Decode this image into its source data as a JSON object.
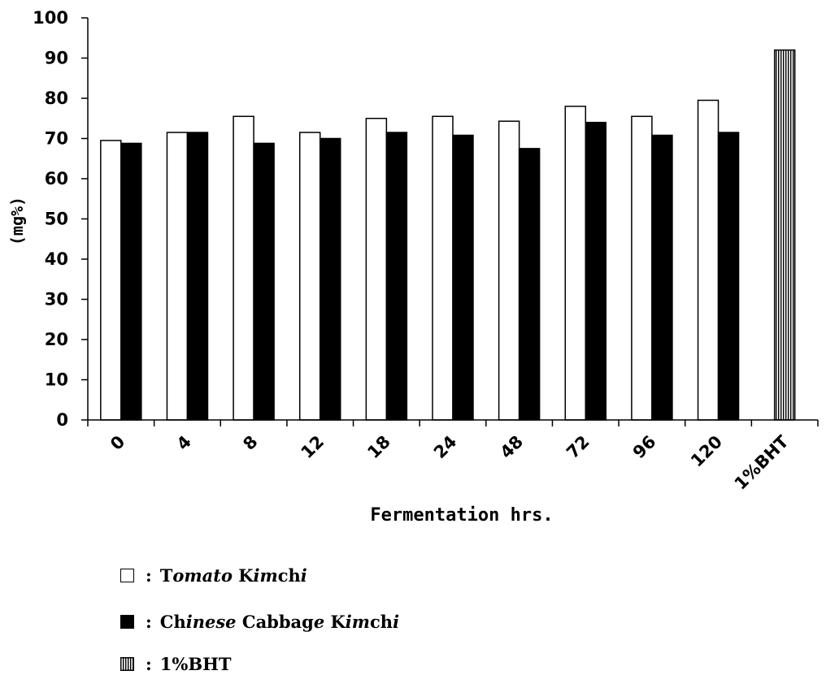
{
  "chart_data": {
    "type": "bar",
    "categories": [
      "0",
      "4",
      "8",
      "12",
      "18",
      "24",
      "48",
      "72",
      "96",
      "120",
      "1%BHT"
    ],
    "series": [
      {
        "name": "Tomato Kimchi",
        "values": [
          69.5,
          71.5,
          75.5,
          71.5,
          75,
          75.5,
          74.3,
          78,
          75.5,
          79.5,
          null
        ],
        "color": "#ffffff"
      },
      {
        "name": "Chinese Cabbage Kimchi",
        "values": [
          68.8,
          71.5,
          68.8,
          70,
          71.5,
          70.8,
          67.5,
          74,
          70.8,
          71.5,
          null
        ],
        "color": "#000000"
      },
      {
        "name": "1%BHT",
        "values": [
          null,
          null,
          null,
          null,
          null,
          null,
          null,
          null,
          null,
          null,
          92
        ],
        "color": "hatched-vertical"
      }
    ],
    "yticks": [
      "0",
      "10",
      "20",
      "30",
      "40",
      "50",
      "60",
      "70",
      "80",
      "90",
      "100"
    ],
    "xlabel": "Fermentation hrs.",
    "ylabel": "(mg%)",
    "ylim": [
      0,
      100
    ],
    "grid": false
  },
  "legend": [
    {
      "sep": ":",
      "parts": [
        [
          "T",
          false
        ],
        [
          "omato",
          true
        ],
        [
          " K",
          false
        ],
        [
          "im",
          true
        ],
        [
          "ch",
          false
        ],
        [
          "i",
          true
        ]
      ]
    },
    {
      "sep": ":",
      "parts": [
        [
          "Ch",
          false
        ],
        [
          "inese",
          true
        ],
        [
          " Cabbag",
          false
        ],
        [
          "e",
          true
        ],
        [
          " K",
          false
        ],
        [
          "im",
          true
        ],
        [
          "ch",
          false
        ],
        [
          "i",
          true
        ]
      ]
    },
    {
      "sep": ":",
      "parts": [
        [
          "1%BHT",
          false
        ]
      ]
    }
  ]
}
